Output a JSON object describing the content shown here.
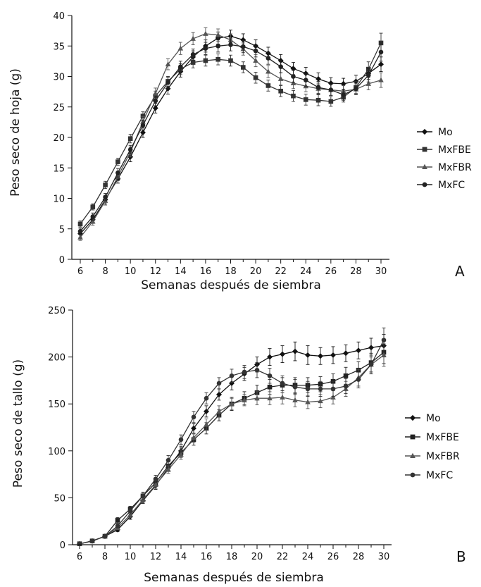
{
  "chart_data": [
    {
      "type": "line",
      "panel_label": "A",
      "xlabel": "Semanas después de siembra",
      "ylabel": "Peso seco de hoja (g)",
      "xlim": [
        5.6,
        30.4
      ],
      "ylim": [
        0,
        40
      ],
      "xticks": [
        6,
        8,
        10,
        12,
        14,
        16,
        18,
        20,
        22,
        24,
        26,
        28,
        30
      ],
      "yticks": [
        0,
        5,
        10,
        15,
        20,
        25,
        30,
        35,
        40
      ],
      "grid": false,
      "legend_position": "right",
      "x": [
        6,
        7,
        8,
        9,
        10,
        11,
        12,
        13,
        14,
        15,
        16,
        17,
        18,
        19,
        20,
        21,
        22,
        23,
        24,
        25,
        26,
        27,
        28,
        29,
        30
      ],
      "series": [
        {
          "name": "Mo",
          "marker": "diamond",
          "color": "#111111",
          "values": [
            4.2,
            6.5,
            9.8,
            13.2,
            16.8,
            20.8,
            24.8,
            28.0,
            30.8,
            33.2,
            35.0,
            36.3,
            36.6,
            36.0,
            35.0,
            33.8,
            32.6,
            31.3,
            30.5,
            29.6,
            28.9,
            28.8,
            29.2,
            30.5,
            32.0
          ],
          "errors": [
            0.6,
            0.6,
            0.7,
            0.7,
            0.8,
            0.8,
            0.8,
            0.9,
            0.9,
            1.0,
            1.0,
            1.0,
            1.0,
            1.0,
            1.0,
            1.0,
            1.0,
            1.0,
            1.0,
            1.0,
            0.9,
            0.9,
            1.0,
            1.0,
            1.2
          ]
        },
        {
          "name": "MxFBE",
          "marker": "square",
          "color": "#333333",
          "values": [
            5.8,
            8.6,
            12.2,
            16.0,
            19.8,
            23.5,
            26.8,
            29.2,
            31.2,
            32.3,
            32.6,
            32.8,
            32.6,
            31.5,
            29.8,
            28.5,
            27.6,
            26.8,
            26.2,
            26.1,
            25.9,
            26.6,
            28.2,
            31.2,
            35.5
          ],
          "errors": [
            0.5,
            0.5,
            0.6,
            0.6,
            0.7,
            0.7,
            0.8,
            0.8,
            0.9,
            0.9,
            0.9,
            0.9,
            0.9,
            0.9,
            0.9,
            0.9,
            0.9,
            0.9,
            0.9,
            0.9,
            0.8,
            0.8,
            1.0,
            1.2,
            1.6
          ]
        },
        {
          "name": "MxFBR",
          "marker": "triangle",
          "color": "#555555",
          "values": [
            3.6,
            6.2,
            9.6,
            13.6,
            17.6,
            22.6,
            27.2,
            32.0,
            34.6,
            36.2,
            37.0,
            36.8,
            36.0,
            34.5,
            32.6,
            30.8,
            29.6,
            28.9,
            28.4,
            28.0,
            27.8,
            27.6,
            27.9,
            28.8,
            29.4
          ],
          "errors": [
            0.5,
            0.6,
            0.7,
            0.7,
            0.8,
            0.8,
            0.9,
            0.9,
            1.0,
            1.0,
            1.0,
            1.0,
            1.0,
            1.0,
            1.0,
            1.0,
            1.0,
            0.9,
            0.9,
            0.9,
            0.9,
            0.9,
            0.9,
            1.0,
            1.2
          ]
        },
        {
          "name": "MxFC",
          "marker": "circle",
          "color": "#222222",
          "values": [
            4.6,
            7.0,
            10.2,
            14.2,
            18.0,
            22.0,
            26.0,
            29.0,
            31.6,
            33.6,
            34.6,
            35.0,
            35.2,
            34.9,
            34.2,
            33.0,
            31.6,
            30.0,
            29.4,
            28.2,
            27.8,
            27.0,
            28.0,
            30.2,
            34.0
          ],
          "errors": [
            0.5,
            0.6,
            0.6,
            0.7,
            0.7,
            0.8,
            0.8,
            0.9,
            0.9,
            0.9,
            1.0,
            1.0,
            1.0,
            1.0,
            1.0,
            1.0,
            1.0,
            1.0,
            1.0,
            1.0,
            0.9,
            0.9,
            1.0,
            1.1,
            1.5
          ]
        }
      ]
    },
    {
      "type": "line",
      "panel_label": "B",
      "xlabel": "Semanas después de siembra",
      "ylabel": "Peso seco de tallo (g)",
      "xlim": [
        5.6,
        30.4
      ],
      "ylim": [
        0,
        250
      ],
      "xticks": [
        6,
        8,
        10,
        12,
        14,
        16,
        18,
        20,
        22,
        24,
        26,
        28,
        30
      ],
      "yticks": [
        0,
        50,
        100,
        150,
        200,
        250
      ],
      "grid": false,
      "legend_position": "right",
      "x": [
        6,
        7,
        8,
        9,
        10,
        11,
        12,
        13,
        14,
        15,
        16,
        17,
        18,
        19,
        20,
        21,
        22,
        23,
        24,
        25,
        26,
        27,
        28,
        29,
        30
      ],
      "series": [
        {
          "name": "Mo",
          "marker": "diamond",
          "color": "#111111",
          "values": [
            1,
            4,
            9,
            16,
            30,
            47,
            63,
            82,
            100,
            124,
            142,
            160,
            172,
            182,
            192,
            200,
            203,
            206,
            202,
            201,
            202,
            204,
            207,
            210,
            212
          ],
          "errors": [
            1,
            1,
            1,
            2,
            3,
            3,
            4,
            4,
            5,
            5,
            6,
            6,
            7,
            7,
            8,
            9,
            9,
            10,
            10,
            9,
            9,
            9,
            9,
            10,
            12
          ]
        },
        {
          "name": "MxFBE",
          "marker": "square",
          "color": "#222222",
          "values": [
            1,
            4,
            9,
            26,
            38,
            52,
            66,
            84,
            98,
            112,
            124,
            138,
            150,
            156,
            162,
            168,
            170,
            170,
            170,
            171,
            174,
            180,
            186,
            194,
            205
          ],
          "errors": [
            1,
            1,
            1,
            3,
            3,
            4,
            4,
            5,
            5,
            6,
            6,
            6,
            7,
            7,
            8,
            8,
            8,
            8,
            8,
            8,
            8,
            9,
            9,
            10,
            12
          ]
        },
        {
          "name": "MxFBR",
          "marker": "triangle",
          "color": "#555555",
          "values": [
            1,
            4,
            9,
            18,
            32,
            48,
            64,
            80,
            96,
            114,
            128,
            142,
            150,
            154,
            156,
            156,
            157,
            154,
            152,
            153,
            157,
            166,
            178,
            192,
            202
          ],
          "errors": [
            1,
            1,
            1,
            2,
            3,
            3,
            4,
            4,
            5,
            5,
            6,
            6,
            6,
            6,
            7,
            7,
            7,
            7,
            7,
            7,
            7,
            8,
            9,
            10,
            12
          ]
        },
        {
          "name": "MxFC",
          "marker": "circle",
          "color": "#333333",
          "values": [
            1,
            4,
            9,
            20,
            36,
            52,
            70,
            90,
            112,
            136,
            156,
            172,
            180,
            184,
            186,
            180,
            172,
            168,
            166,
            166,
            166,
            169,
            176,
            192,
            218
          ],
          "errors": [
            1,
            1,
            1,
            2,
            3,
            4,
            4,
            5,
            5,
            6,
            6,
            6,
            7,
            7,
            8,
            8,
            8,
            8,
            8,
            8,
            8,
            8,
            9,
            10,
            13
          ]
        }
      ]
    }
  ]
}
